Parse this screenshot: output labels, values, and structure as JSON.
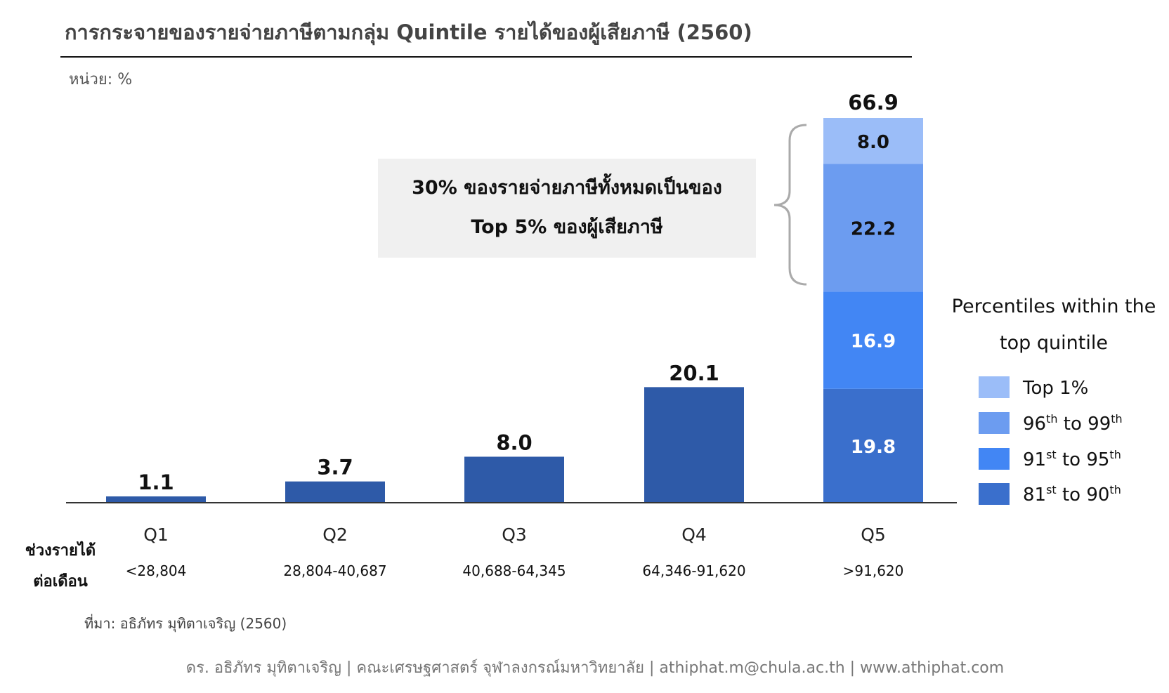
{
  "title": "การกระจายของรายจ่ายภาษีตามกลุ่ม Quintile รายได้ของผู้เสียภาษี (2560)",
  "unit_label": "หน่วย: %",
  "row_label_line1": "ช่วงรายได้",
  "row_label_line2": "ต่อเดือน",
  "callout": {
    "line1": "30% ของรายจ่ายภาษีทั้งหมดเป็นของ",
    "line2": "Top 5% ของผู้เสียภาษี"
  },
  "legend": {
    "title_line1": "Percentiles within the",
    "title_line2": "top quintile"
  },
  "source": "ที่มา: อธิภัทร มุทิตาเจริญ (2560)",
  "footer": "ดร. อธิภัทร มุทิตาเจริญ | คณะเศรษฐศาสตร์ จุฬาลงกรณ์มหาวิทยาลัย | athiphat.m@chula.ac.th | www.athiphat.com",
  "colors": {
    "bar": "#2e5aa8",
    "q5_81_90": "#3a6fcc",
    "q5_91_95": "#4286f4",
    "q5_96_99": "#6c9cf0",
    "q5_top1": "#9bbdf8",
    "callout_bg": "#f0f0f0",
    "brace": "#aaaaaa"
  },
  "chart_data": {
    "type": "bar",
    "stacked_last": true,
    "categories": [
      "Q1",
      "Q2",
      "Q3",
      "Q4",
      "Q5"
    ],
    "income_ranges": [
      "<28,804",
      "28,804-40,687",
      "40,688-64,345",
      "64,346-91,620",
      ">91,620"
    ],
    "values": [
      1.1,
      3.7,
      8.0,
      20.1,
      66.9
    ],
    "value_labels": [
      "1.1",
      "3.7",
      "8.0",
      "20.1",
      "66.9"
    ],
    "q5_breakdown": [
      {
        "name": "81st to 90th",
        "base": "81",
        "sup1": "st",
        "mid": " to 90",
        "sup2": "th",
        "value": 19.8,
        "label": "19.8"
      },
      {
        "name": "91st to 95th",
        "base": "91",
        "sup1": "st",
        "mid": " to 95",
        "sup2": "th",
        "value": 16.9,
        "label": "16.9"
      },
      {
        "name": "96th to 99th",
        "base": "96",
        "sup1": "th",
        "mid": " to 99",
        "sup2": "th",
        "value": 22.2,
        "label": "22.2"
      },
      {
        "name": "Top 1%",
        "base": "Top 1%",
        "sup1": "",
        "mid": "",
        "sup2": "",
        "value": 8.0,
        "label": "8.0"
      }
    ],
    "ylim": [
      0,
      66.9
    ],
    "grid": false,
    "legend_position": "right"
  }
}
